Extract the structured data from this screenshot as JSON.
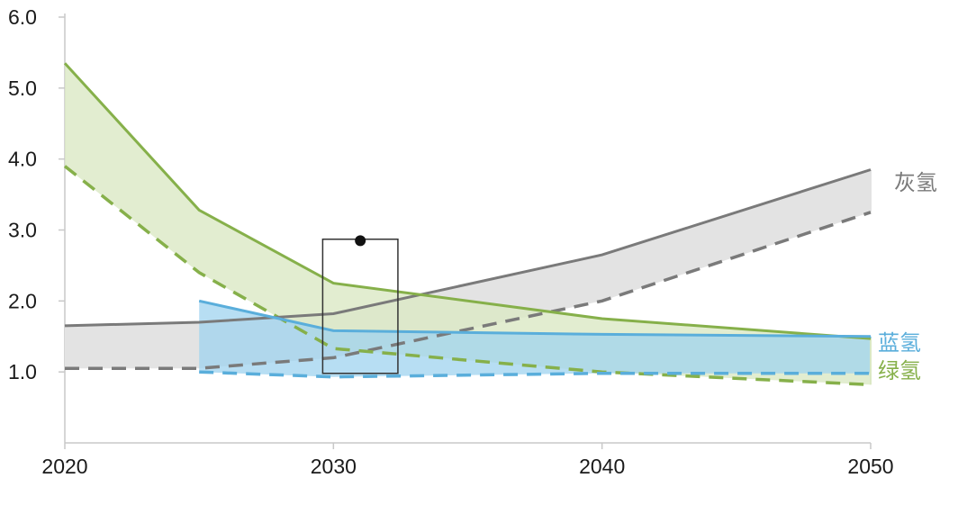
{
  "chart_data": {
    "type": "area",
    "title": "",
    "xlabel": "",
    "ylabel": "",
    "xlim": [
      2020,
      2050
    ],
    "ylim": [
      0,
      6.0
    ],
    "x_ticks": [
      2020,
      2030,
      2040,
      2050
    ],
    "x_tick_labels": [
      "2020",
      "2030",
      "2040",
      "2050"
    ],
    "y_ticks": [
      1.0,
      2.0,
      3.0,
      4.0,
      5.0,
      6.0
    ],
    "y_tick_labels": [
      "1.0",
      "2.0",
      "3.0",
      "4.0",
      "5.0",
      "6.0"
    ],
    "grid": false,
    "legend": "none (series labeled at line ends on the right)",
    "series": [
      {
        "name": "灰氢",
        "color": "#7a7a7a",
        "fill": "#e3e3e3",
        "x": [
          2020,
          2025,
          2030,
          2040,
          2050
        ],
        "upper": [
          1.65,
          1.7,
          1.82,
          2.65,
          3.85
        ],
        "lower": [
          1.05,
          1.05,
          1.2,
          2.0,
          3.25
        ]
      },
      {
        "name": "蓝氢",
        "color": "#5aaedb",
        "fill": "#9fd3ef",
        "x": [
          2025,
          2030,
          2040,
          2050
        ],
        "upper": [
          2.0,
          1.58,
          1.53,
          1.5
        ],
        "lower": [
          1.0,
          0.93,
          0.98,
          0.98
        ]
      },
      {
        "name": "绿氢",
        "color": "#86b04a",
        "fill": "#dbe8c4",
        "x": [
          2020,
          2025,
          2030,
          2040,
          2050
        ],
        "upper": [
          5.35,
          3.28,
          2.25,
          1.75,
          1.47
        ],
        "lower": [
          3.9,
          2.4,
          1.33,
          1.0,
          0.82
        ]
      }
    ],
    "annotations": [
      {
        "type": "box",
        "x_range": [
          2029.6,
          2032.4
        ],
        "y_range": [
          0.98,
          2.87
        ]
      },
      {
        "type": "point",
        "x": 2031.0,
        "y": 2.85
      }
    ]
  }
}
